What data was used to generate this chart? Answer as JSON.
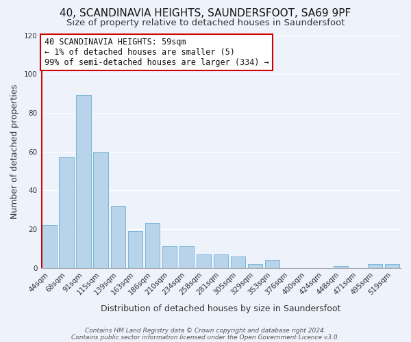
{
  "title": "40, SCANDINAVIA HEIGHTS, SAUNDERSFOOT, SA69 9PF",
  "subtitle": "Size of property relative to detached houses in Saundersfoot",
  "xlabel": "Distribution of detached houses by size in Saundersfoot",
  "ylabel": "Number of detached properties",
  "footer_line1": "Contains HM Land Registry data © Crown copyright and database right 2024.",
  "footer_line2": "Contains public sector information licensed under the Open Government Licence v3.0.",
  "bar_labels": [
    "44sqm",
    "68sqm",
    "91sqm",
    "115sqm",
    "139sqm",
    "163sqm",
    "186sqm",
    "210sqm",
    "234sqm",
    "258sqm",
    "281sqm",
    "305sqm",
    "329sqm",
    "353sqm",
    "376sqm",
    "400sqm",
    "424sqm",
    "448sqm",
    "471sqm",
    "495sqm",
    "519sqm"
  ],
  "bar_values": [
    22,
    57,
    89,
    60,
    32,
    19,
    23,
    11,
    11,
    7,
    7,
    6,
    2,
    4,
    0,
    0,
    0,
    1,
    0,
    2,
    2
  ],
  "bar_color": "#b8d4ea",
  "bar_edge_color": "#6baed6",
  "highlight_line_color": "#cc0000",
  "red_line_x": -0.5,
  "ylim": [
    0,
    120
  ],
  "yticks": [
    0,
    20,
    40,
    60,
    80,
    100,
    120
  ],
  "annotation_text_line1": "40 SCANDINAVIA HEIGHTS: 59sqm",
  "annotation_text_line2": "← 1% of detached houses are smaller (5)",
  "annotation_text_line3": "99% of semi-detached houses are larger (334) →",
  "bg_color": "#eef2fb",
  "grid_color": "#ffffff",
  "title_fontsize": 11,
  "subtitle_fontsize": 9.5,
  "axis_label_fontsize": 9,
  "tick_fontsize": 7.5,
  "annotation_fontsize": 8.5,
  "footer_fontsize": 6.5
}
